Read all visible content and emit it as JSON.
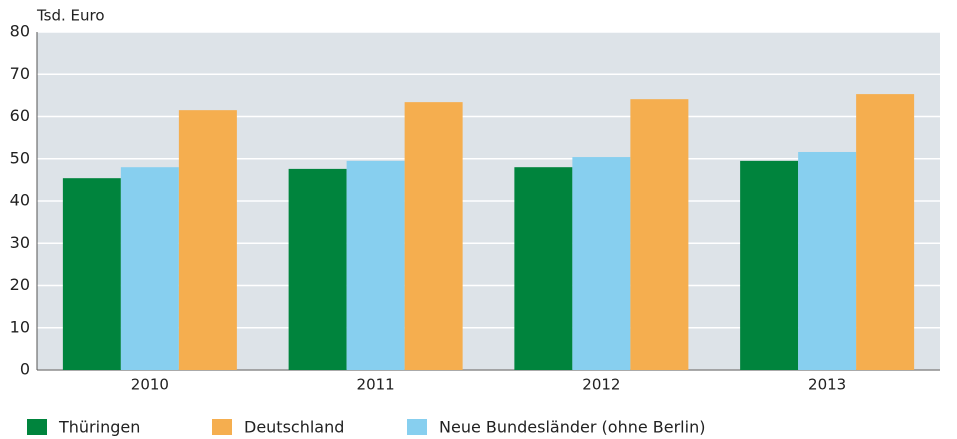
{
  "chart_data": {
    "type": "bar",
    "y_label": "Tsd. Euro",
    "categories": [
      "2010",
      "2011",
      "2012",
      "2013"
    ],
    "series": [
      {
        "name": "Thüringen",
        "color": "#00843d",
        "values": [
          45.4,
          47.6,
          48.0,
          49.5
        ]
      },
      {
        "name": "Deutschland",
        "color": "#f5ae4f",
        "values": [
          61.5,
          63.4,
          64.1,
          65.3
        ]
      },
      {
        "name": "Neue Bundesländer (ohne Berlin)",
        "color": "#87cfef",
        "values": [
          48.0,
          49.5,
          50.4,
          51.6
        ]
      }
    ],
    "ylim": [
      0,
      80
    ],
    "yticks": [
      0,
      10,
      20,
      30,
      40,
      50,
      60,
      70,
      80
    ],
    "grid": true
  }
}
